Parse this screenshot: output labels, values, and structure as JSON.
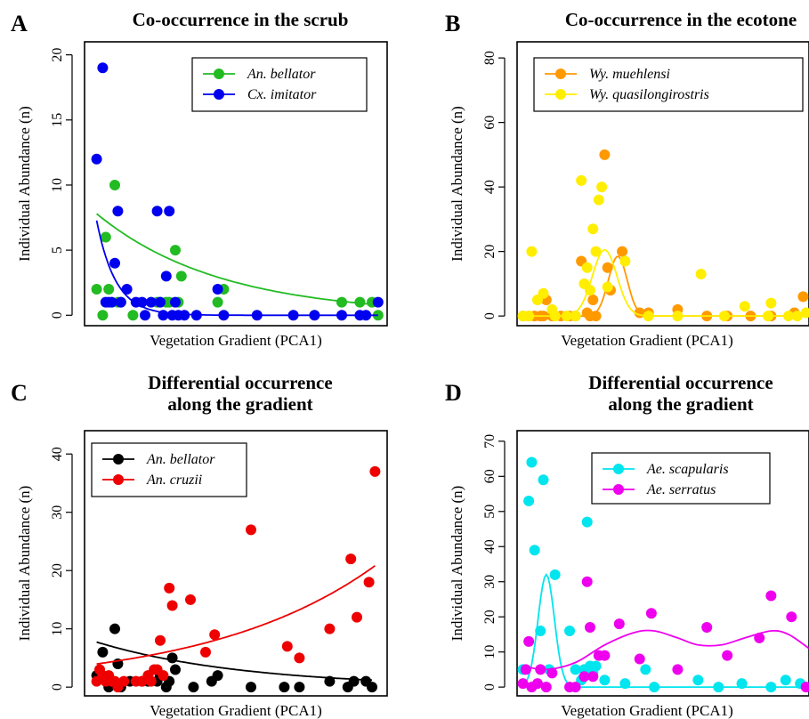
{
  "chart_data": [
    {
      "type": "scatter",
      "panel_letter": "A",
      "title": [
        "Co-occurrence in the scrub"
      ],
      "xlabel": "Vegetation Gradient (PCA1)",
      "ylabel": "Individual Abundance (n)",
      "xlim": [
        0,
        1
      ],
      "ylim": [
        -0.8,
        21
      ],
      "yticks": [
        0,
        5,
        10,
        15,
        20
      ],
      "legend_position": "top-right",
      "series": [
        {
          "name": "An. bellator",
          "color": "#22bb22",
          "points": [
            [
              0.04,
              2
            ],
            [
              0.06,
              0
            ],
            [
              0.07,
              6
            ],
            [
              0.08,
              2
            ],
            [
              0.1,
              10
            ],
            [
              0.11,
              1
            ],
            [
              0.12,
              1
            ],
            [
              0.16,
              0
            ],
            [
              0.24,
              1
            ],
            [
              0.25,
              1
            ],
            [
              0.27,
              1
            ],
            [
              0.28,
              1
            ],
            [
              0.3,
              5
            ],
            [
              0.31,
              1
            ],
            [
              0.32,
              3
            ],
            [
              0.44,
              1
            ],
            [
              0.46,
              2
            ],
            [
              0.85,
              1
            ],
            [
              0.91,
              1
            ],
            [
              0.95,
              1
            ],
            [
              0.97,
              0
            ]
          ],
          "curve": {
            "type": "exp",
            "a": 8.6,
            "b": -2.45,
            "x_range": [
              0.04,
              0.97
            ]
          }
        },
        {
          "name": "Cx. imitator",
          "color": "#0000ee",
          "points": [
            [
              0.04,
              12
            ],
            [
              0.06,
              19
            ],
            [
              0.07,
              1
            ],
            [
              0.08,
              1
            ],
            [
              0.09,
              1
            ],
            [
              0.1,
              4
            ],
            [
              0.11,
              8
            ],
            [
              0.12,
              1
            ],
            [
              0.14,
              2
            ],
            [
              0.17,
              1
            ],
            [
              0.19,
              1
            ],
            [
              0.2,
              0
            ],
            [
              0.22,
              1
            ],
            [
              0.24,
              8
            ],
            [
              0.25,
              1
            ],
            [
              0.26,
              0
            ],
            [
              0.27,
              3
            ],
            [
              0.28,
              8
            ],
            [
              0.29,
              0
            ],
            [
              0.3,
              1
            ],
            [
              0.31,
              0
            ],
            [
              0.33,
              0
            ],
            [
              0.37,
              0
            ],
            [
              0.44,
              2
            ],
            [
              0.46,
              0
            ],
            [
              0.57,
              0
            ],
            [
              0.69,
              0
            ],
            [
              0.76,
              0
            ],
            [
              0.85,
              0
            ],
            [
              0.91,
              0
            ],
            [
              0.93,
              0
            ],
            [
              0.97,
              1
            ]
          ],
          "curve": {
            "type": "exp",
            "a": 13.8,
            "b": -16,
            "x_range": [
              0.04,
              0.97
            ]
          }
        }
      ]
    },
    {
      "type": "scatter",
      "panel_letter": "B",
      "title": [
        "Co-occurrence in the ecotone"
      ],
      "xlabel": "Vegetation Gradient (PCA1)",
      "ylabel": "Individual Abundance (n)",
      "xlim": [
        0,
        1
      ],
      "ylim": [
        -3,
        85
      ],
      "yticks": [
        0,
        20,
        40,
        60,
        80
      ],
      "legend_position": "top-left",
      "series": [
        {
          "name": "Wy. muehlensi",
          "color": "#ff9900",
          "points": [
            [
              0.02,
              0
            ],
            [
              0.04,
              0
            ],
            [
              0.06,
              0
            ],
            [
              0.08,
              0
            ],
            [
              0.09,
              0
            ],
            [
              0.1,
              5
            ],
            [
              0.12,
              0
            ],
            [
              0.15,
              0
            ],
            [
              0.18,
              0
            ],
            [
              0.2,
              0
            ],
            [
              0.22,
              17
            ],
            [
              0.24,
              1
            ],
            [
              0.25,
              0
            ],
            [
              0.26,
              5
            ],
            [
              0.27,
              0
            ],
            [
              0.3,
              50
            ],
            [
              0.31,
              15
            ],
            [
              0.32,
              8
            ],
            [
              0.36,
              20
            ],
            [
              0.42,
              1
            ],
            [
              0.45,
              1
            ],
            [
              0.55,
              2
            ],
            [
              0.65,
              0
            ],
            [
              0.72,
              0
            ],
            [
              0.8,
              0
            ],
            [
              0.87,
              0
            ],
            [
              0.95,
              1
            ],
            [
              0.98,
              6
            ]
          ],
          "curve": {
            "type": "gauss",
            "a": 18.5,
            "mu": 0.345,
            "sigma": 0.032,
            "base": 0,
            "x_range": [
              0.02,
              0.99
            ]
          }
        },
        {
          "name": "Wy. quasilongirostris",
          "color": "#ffee00",
          "points": [
            [
              0.02,
              0
            ],
            [
              0.04,
              0
            ],
            [
              0.05,
              20
            ],
            [
              0.07,
              5
            ],
            [
              0.09,
              7
            ],
            [
              0.12,
              2
            ],
            [
              0.13,
              0
            ],
            [
              0.17,
              0
            ],
            [
              0.2,
              0
            ],
            [
              0.22,
              42
            ],
            [
              0.23,
              10
            ],
            [
              0.24,
              15
            ],
            [
              0.25,
              8
            ],
            [
              0.26,
              27
            ],
            [
              0.27,
              20
            ],
            [
              0.28,
              36
            ],
            [
              0.29,
              40
            ],
            [
              0.31,
              9
            ],
            [
              0.37,
              17
            ],
            [
              0.45,
              0
            ],
            [
              0.55,
              0
            ],
            [
              0.63,
              13
            ],
            [
              0.71,
              0
            ],
            [
              0.78,
              3
            ],
            [
              0.86,
              0
            ],
            [
              0.87,
              4
            ],
            [
              0.93,
              0
            ],
            [
              0.96,
              0
            ],
            [
              0.99,
              1
            ]
          ],
          "curve": {
            "type": "gauss",
            "a": 20.5,
            "mu": 0.3,
            "sigma": 0.042,
            "base": 0,
            "x_range": [
              0.02,
              0.99
            ]
          }
        }
      ]
    },
    {
      "type": "scatter",
      "panel_letter": "C",
      "title": [
        "Differential occurrence",
        "along the gradient"
      ],
      "xlabel": "Vegetation Gradient (PCA1)",
      "ylabel": "Individual Abundance (n)",
      "xlim": [
        0,
        1
      ],
      "ylim": [
        -1.5,
        44
      ],
      "yticks": [
        0,
        10,
        20,
        30,
        40
      ],
      "legend_position": "top-left",
      "series": [
        {
          "name": "An. bellator",
          "color": "#000000",
          "points": [
            [
              0.04,
              2
            ],
            [
              0.06,
              6
            ],
            [
              0.07,
              1
            ],
            [
              0.08,
              0
            ],
            [
              0.09,
              1
            ],
            [
              0.1,
              10
            ],
            [
              0.11,
              4
            ],
            [
              0.12,
              0
            ],
            [
              0.15,
              1
            ],
            [
              0.19,
              1
            ],
            [
              0.21,
              1
            ],
            [
              0.24,
              1
            ],
            [
              0.25,
              2
            ],
            [
              0.27,
              0
            ],
            [
              0.28,
              1
            ],
            [
              0.29,
              5
            ],
            [
              0.3,
              3
            ],
            [
              0.36,
              0
            ],
            [
              0.42,
              1
            ],
            [
              0.44,
              2
            ],
            [
              0.55,
              0
            ],
            [
              0.66,
              0
            ],
            [
              0.71,
              0
            ],
            [
              0.81,
              1
            ],
            [
              0.87,
              0
            ],
            [
              0.89,
              1
            ],
            [
              0.93,
              1
            ],
            [
              0.95,
              0
            ]
          ],
          "curve": {
            "type": "exp",
            "a": 8.4,
            "b": -2.05,
            "x_range": [
              0.04,
              0.95
            ]
          }
        },
        {
          "name": "An. cruzii",
          "color": "#ee0000",
          "points": [
            [
              0.04,
              1
            ],
            [
              0.05,
              3
            ],
            [
              0.06,
              2
            ],
            [
              0.07,
              1
            ],
            [
              0.08,
              2
            ],
            [
              0.09,
              1
            ],
            [
              0.1,
              1
            ],
            [
              0.11,
              0
            ],
            [
              0.13,
              1
            ],
            [
              0.17,
              1
            ],
            [
              0.19,
              1
            ],
            [
              0.21,
              2
            ],
            [
              0.22,
              1
            ],
            [
              0.23,
              3
            ],
            [
              0.24,
              3
            ],
            [
              0.25,
              8
            ],
            [
              0.26,
              2
            ],
            [
              0.28,
              17
            ],
            [
              0.29,
              14
            ],
            [
              0.35,
              15
            ],
            [
              0.4,
              6
            ],
            [
              0.43,
              9
            ],
            [
              0.55,
              27
            ],
            [
              0.67,
              7
            ],
            [
              0.71,
              5
            ],
            [
              0.81,
              10
            ],
            [
              0.88,
              22
            ],
            [
              0.9,
              12
            ],
            [
              0.94,
              18
            ],
            [
              0.96,
              37
            ]
          ],
          "curve": {
            "type": "exp",
            "a": 3.7,
            "b": 1.8,
            "x_range": [
              0.04,
              0.96
            ]
          }
        }
      ]
    },
    {
      "type": "scatter",
      "panel_letter": "D",
      "title": [
        "Differential occurrence",
        "along the gradient"
      ],
      "xlabel": "Vegetation Gradient (PCA1)",
      "ylabel": "Individual Abundance (n)",
      "xlim": [
        0,
        1
      ],
      "ylim": [
        -2.5,
        73
      ],
      "yticks": [
        0,
        10,
        20,
        30,
        40,
        50,
        60,
        70
      ],
      "legend_position": "top-right",
      "series": [
        {
          "name": "Ae. scapularis",
          "color": "#00e5ee",
          "points": [
            [
              0.02,
              5
            ],
            [
              0.04,
              53
            ],
            [
              0.05,
              64
            ],
            [
              0.06,
              39
            ],
            [
              0.08,
              16
            ],
            [
              0.09,
              59
            ],
            [
              0.11,
              5
            ],
            [
              0.13,
              32
            ],
            [
              0.18,
              16
            ],
            [
              0.2,
              5
            ],
            [
              0.22,
              2
            ],
            [
              0.23,
              5
            ],
            [
              0.24,
              47
            ],
            [
              0.25,
              6
            ],
            [
              0.26,
              4
            ],
            [
              0.27,
              6
            ],
            [
              0.3,
              2
            ],
            [
              0.37,
              1
            ],
            [
              0.44,
              5
            ],
            [
              0.47,
              0
            ],
            [
              0.62,
              2
            ],
            [
              0.69,
              0
            ],
            [
              0.77,
              1
            ],
            [
              0.87,
              0
            ],
            [
              0.92,
              2
            ],
            [
              0.97,
              1
            ]
          ],
          "curve": {
            "type": "gauss",
            "a": 32,
            "mu": 0.1,
            "sigma": 0.028,
            "base": 0,
            "x_range": [
              0.02,
              1.0
            ]
          }
        },
        {
          "name": "Ae. serratus",
          "color": "#ee00ee",
          "points": [
            [
              0.02,
              1
            ],
            [
              0.03,
              5
            ],
            [
              0.04,
              13
            ],
            [
              0.05,
              0
            ],
            [
              0.07,
              1
            ],
            [
              0.08,
              5
            ],
            [
              0.1,
              0
            ],
            [
              0.12,
              4
            ],
            [
              0.18,
              0
            ],
            [
              0.2,
              0
            ],
            [
              0.23,
              3
            ],
            [
              0.24,
              30
            ],
            [
              0.25,
              17
            ],
            [
              0.26,
              3
            ],
            [
              0.28,
              9
            ],
            [
              0.3,
              9
            ],
            [
              0.35,
              18
            ],
            [
              0.42,
              8
            ],
            [
              0.46,
              21
            ],
            [
              0.55,
              5
            ],
            [
              0.65,
              17
            ],
            [
              0.72,
              9
            ],
            [
              0.83,
              14
            ],
            [
              0.87,
              26
            ],
            [
              0.94,
              20
            ],
            [
              0.99,
              0
            ]
          ],
          "curve": {
            "type": "wave",
            "points": [
              [
                0.02,
                6
              ],
              [
                0.1,
                5
              ],
              [
                0.2,
                7
              ],
              [
                0.3,
                12
              ],
              [
                0.4,
                15.5
              ],
              [
                0.47,
                16
              ],
              [
                0.55,
                14
              ],
              [
                0.62,
                12
              ],
              [
                0.7,
                12
              ],
              [
                0.78,
                14
              ],
              [
                0.87,
                16
              ],
              [
                0.93,
                15
              ],
              [
                1.0,
                11
              ]
            ],
            "x_range": [
              0.02,
              1.0
            ]
          }
        }
      ]
    }
  ]
}
